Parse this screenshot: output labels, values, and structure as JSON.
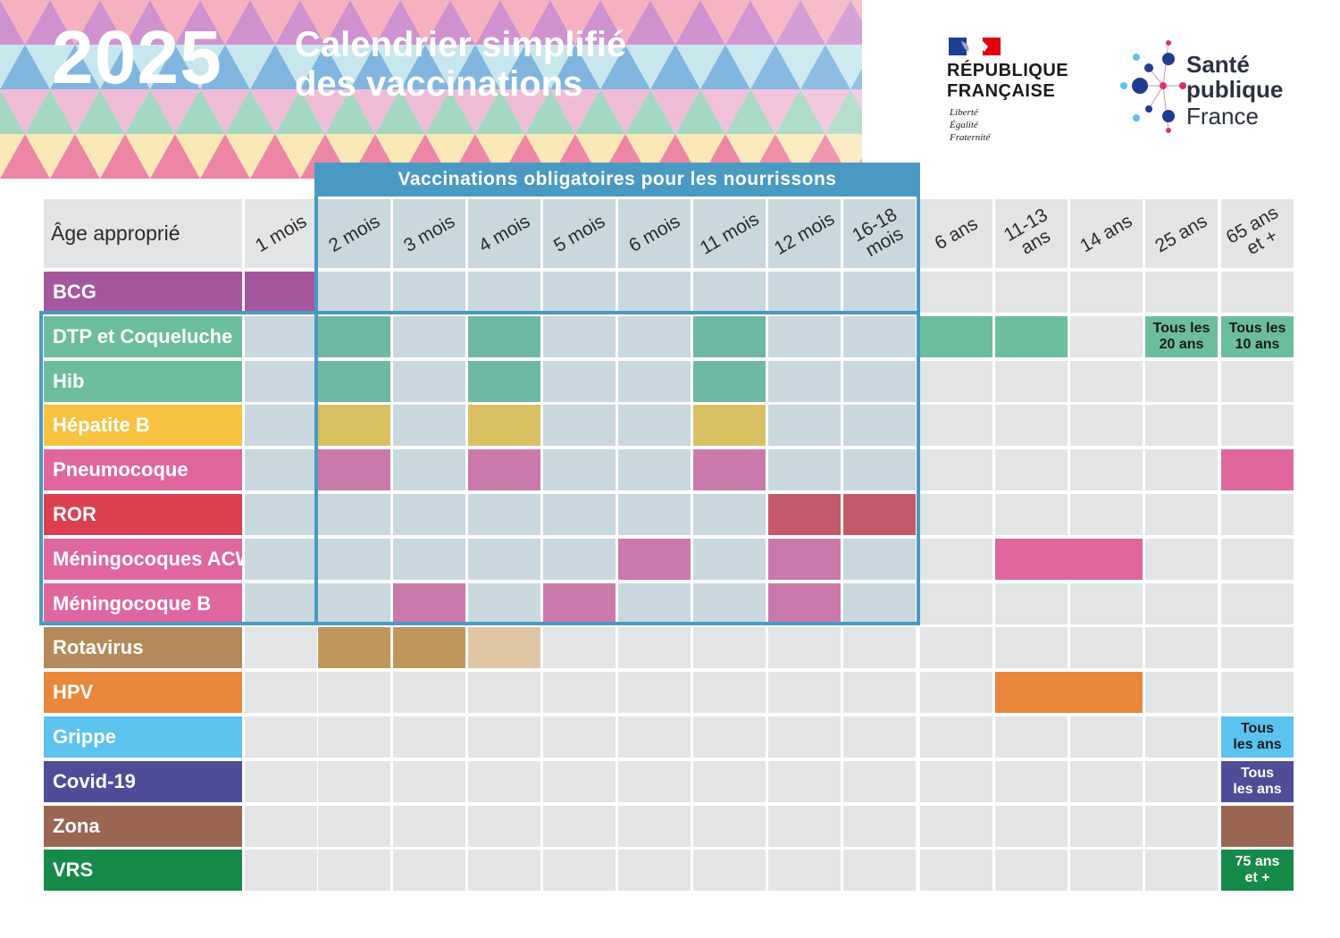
{
  "header": {
    "year": "2025",
    "title_line1": "Calendrier simplifié",
    "title_line2": "des vaccinations"
  },
  "rf_logo": {
    "name_line1": "RÉPUBLIQUE",
    "name_line2": "FRANÇAISE",
    "motto1": "Liberté",
    "motto2": "Égalité",
    "motto3": "Fraternité"
  },
  "spf_logo": {
    "line1": "Santé",
    "line2": "publique",
    "line3": "France"
  },
  "mandatory_header": "Vaccinations obligatoires pour les nourrissons",
  "age_label": "Âge approprié",
  "columns": [
    "1 mois",
    "2 mois",
    "3 mois",
    "4 mois",
    "5 mois",
    "6 mois",
    "11 mois",
    "12 mois",
    "16-18\nmois",
    "6 ans",
    "11-13\nans",
    "14 ans",
    "25 ans",
    "65 ans\net +"
  ],
  "colors": {
    "bcg": "#a5579d",
    "dtp": "#6cbd9d",
    "hib": "#6cbd9d",
    "hepb": "#f5c242",
    "pneumo": "#e0669f",
    "ror": "#dc4050",
    "menacwy": "#e0669f",
    "menb": "#e0669f",
    "rota": "#b48a5a",
    "hpv": "#e8873b",
    "grippe": "#5bc3ee",
    "covid": "#4d4e97",
    "zona": "#9b6553",
    "vrs": "#168a48",
    "mandatory_frame": "#4a99c2"
  },
  "rows": [
    {
      "label": "BCG",
      "color": "#a5579d",
      "fills": [
        {
          "col": 0,
          "color": "#a5579d"
        }
      ]
    },
    {
      "label": "DTP et Coqueluche",
      "color": "#6cbd9d",
      "fills": [
        {
          "col": 1,
          "color": "#6fb8a3"
        },
        {
          "col": 3,
          "color": "#6fb8a3"
        },
        {
          "col": 6,
          "color": "#6fb8a3"
        },
        {
          "col": 9,
          "color": "#6cbd9d"
        },
        {
          "col": 10,
          "color": "#6cbd9d"
        },
        {
          "col": 12,
          "color": "#6cbd9d",
          "note": "Tous les\n20 ans"
        },
        {
          "col": 13,
          "color": "#6cbd9d",
          "note": "Tous les\n10 ans"
        }
      ]
    },
    {
      "label": "Hib",
      "color": "#6cbd9d",
      "fills": [
        {
          "col": 1,
          "color": "#6fb8a3"
        },
        {
          "col": 3,
          "color": "#6fb8a3"
        },
        {
          "col": 6,
          "color": "#6fb8a3"
        }
      ]
    },
    {
      "label": "Hépatite B",
      "color": "#f5c242",
      "fills": [
        {
          "col": 1,
          "color": "#d9c062"
        },
        {
          "col": 3,
          "color": "#d9c062"
        },
        {
          "col": 6,
          "color": "#d9c062"
        }
      ]
    },
    {
      "label": "Pneumocoque",
      "color": "#e0669f",
      "fills": [
        {
          "col": 1,
          "color": "#c97aab"
        },
        {
          "col": 3,
          "color": "#c97aab"
        },
        {
          "col": 6,
          "color": "#c97aab"
        },
        {
          "col": 13,
          "color": "#e0669f"
        }
      ]
    },
    {
      "label": "ROR",
      "color": "#dc4050",
      "fills": [
        {
          "col": 7,
          "color": "#c45a69"
        },
        {
          "col": 8,
          "color": "#c45a69"
        }
      ]
    },
    {
      "label": "Méningocoques ACWY",
      "color": "#e0669f",
      "fills": [
        {
          "col": 5,
          "color": "#c97aab"
        },
        {
          "col": 7,
          "color": "#c97aab"
        },
        {
          "col": 10,
          "color": "#e0669f",
          "span": 2
        }
      ]
    },
    {
      "label": "Méningocoque B",
      "color": "#e0669f",
      "fills": [
        {
          "col": 2,
          "color": "#c97aab"
        },
        {
          "col": 4,
          "color": "#c97aab"
        },
        {
          "col": 7,
          "color": "#c97aab"
        }
      ]
    },
    {
      "label": "Rotavirus",
      "color": "#b48a5a",
      "fills": [
        {
          "col": 1,
          "color": "#c1965d"
        },
        {
          "col": 2,
          "color": "#c1965d"
        },
        {
          "col": 3,
          "color": "#dfc7a5"
        }
      ]
    },
    {
      "label": "HPV",
      "color": "#e8873b",
      "fills": [
        {
          "col": 10,
          "color": "#e8873b",
          "span": 2
        }
      ]
    },
    {
      "label": "Grippe",
      "color": "#5bc3ee",
      "fills": [
        {
          "col": 13,
          "color": "#5bc3ee",
          "note": "Tous\nles ans"
        }
      ]
    },
    {
      "label": "Covid-19",
      "color": "#4d4e97",
      "fills": [
        {
          "col": 13,
          "color": "#4d4e97",
          "note": "Tous\nles ans",
          "light": true
        }
      ]
    },
    {
      "label": "Zona",
      "color": "#9b6553",
      "fills": [
        {
          "col": 13,
          "color": "#9b6553"
        }
      ]
    },
    {
      "label": "VRS",
      "color": "#168a48",
      "fills": [
        {
          "col": 13,
          "color": "#168a48",
          "note": "75 ans\net +",
          "light": true
        }
      ]
    }
  ]
}
